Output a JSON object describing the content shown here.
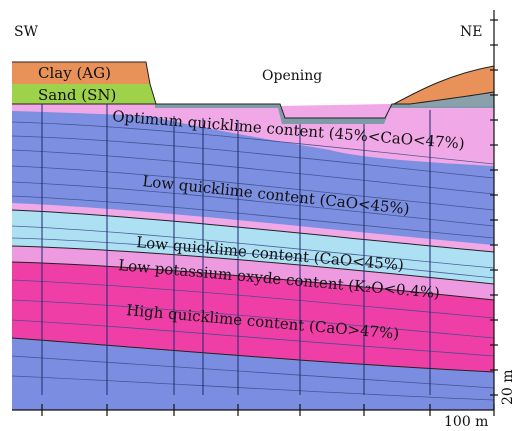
{
  "figure": {
    "orientation": {
      "left": "SW",
      "right": "NE"
    },
    "opening_label": "Opening",
    "layers": [
      {
        "id": "clay",
        "label": "Clay (AG)",
        "color": "#e8925a"
      },
      {
        "id": "sand",
        "label": "Sand (SN)",
        "color": "#9ed24a"
      },
      {
        "id": "optimum",
        "label": "Optimum quicklime content (45%<CaO<47%)",
        "color": "#f0a8e6"
      },
      {
        "id": "low_upper",
        "label": "Low quicklime content (CaO<45%)",
        "color": "#7d8fe0"
      },
      {
        "id": "low_lower",
        "label": "Low quicklime content (CaO<45%)",
        "color": "#aee0f4"
      },
      {
        "id": "potassium",
        "label": "Low potassium oxyde content (K₂O<0.4%)",
        "color": "#ee9ae0"
      },
      {
        "id": "high",
        "label": "High quicklime content (CaO>47%)",
        "color": "#ef3fa7"
      },
      {
        "id": "base",
        "label": "",
        "color": "#7b8de0"
      }
    ],
    "scale": {
      "vertical_label": "20 m",
      "horizontal_label": "100 m"
    }
  }
}
